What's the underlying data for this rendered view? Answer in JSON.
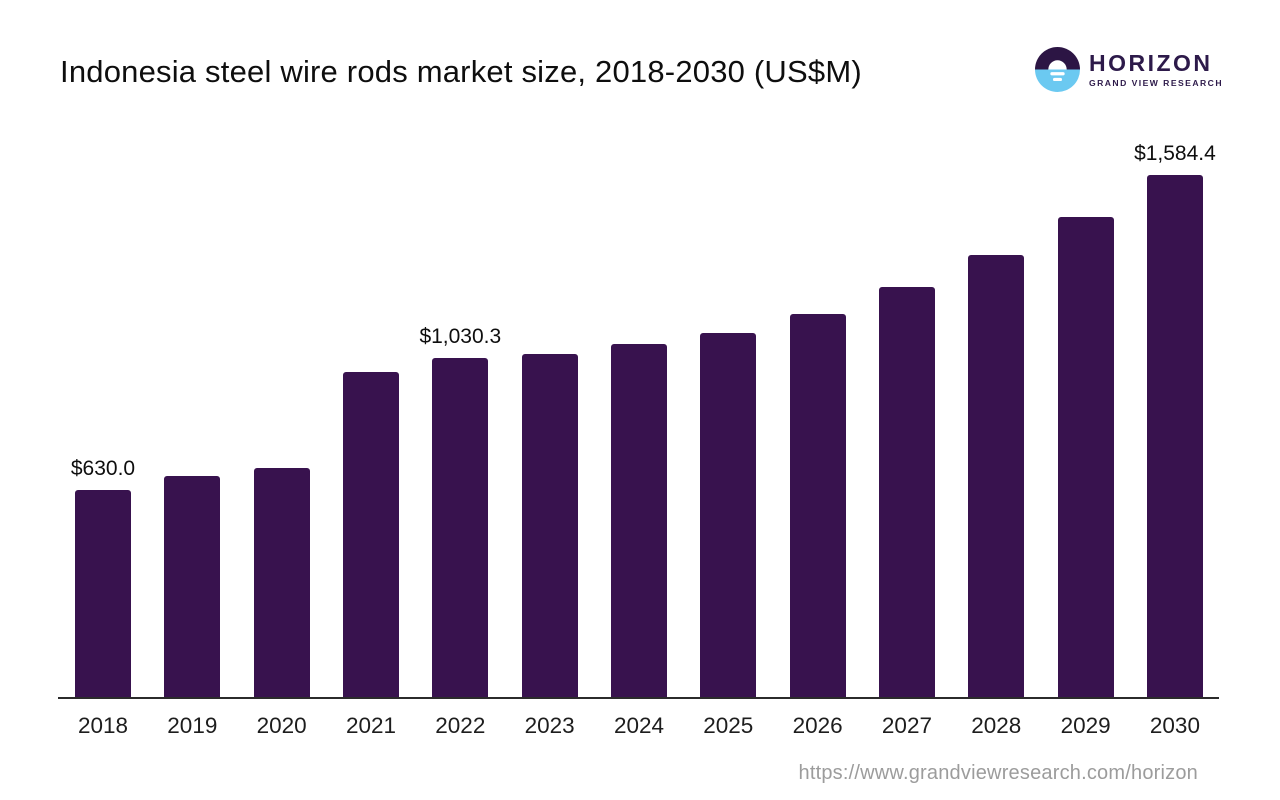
{
  "header": {
    "title": "Indonesia steel wire rods market size, 2018-2030 (US$M)",
    "logo": {
      "name": "HORIZON",
      "subtitle": "GRAND VIEW RESEARCH"
    }
  },
  "footer": {
    "url": "https://www.grandviewresearch.com/horizon"
  },
  "colors": {
    "bar": "#38124e",
    "logo_dark": "#2c1544",
    "logo_blue": "#6bc9f1",
    "axis": "#2b2b2b",
    "url_gray": "#9c9c9c"
  },
  "chart_data": {
    "type": "bar",
    "title": "Indonesia steel wire rods market size, 2018-2030 (US$M)",
    "categories": [
      "2018",
      "2019",
      "2020",
      "2021",
      "2022",
      "2023",
      "2024",
      "2025",
      "2026",
      "2027",
      "2028",
      "2029",
      "2030"
    ],
    "values": [
      630.0,
      672,
      695,
      988,
      1030.3,
      1043,
      1072,
      1105,
      1162,
      1246,
      1342,
      1458,
      1584.4
    ],
    "data_labels": [
      "$630.0",
      null,
      null,
      null,
      "$1,030.3",
      null,
      null,
      null,
      null,
      null,
      null,
      null,
      "$1,584.4"
    ],
    "xlabel": "",
    "ylabel": "",
    "ylim": [
      0,
      1720
    ],
    "grid": false,
    "legend": "none",
    "bar_color": "#38124e"
  }
}
